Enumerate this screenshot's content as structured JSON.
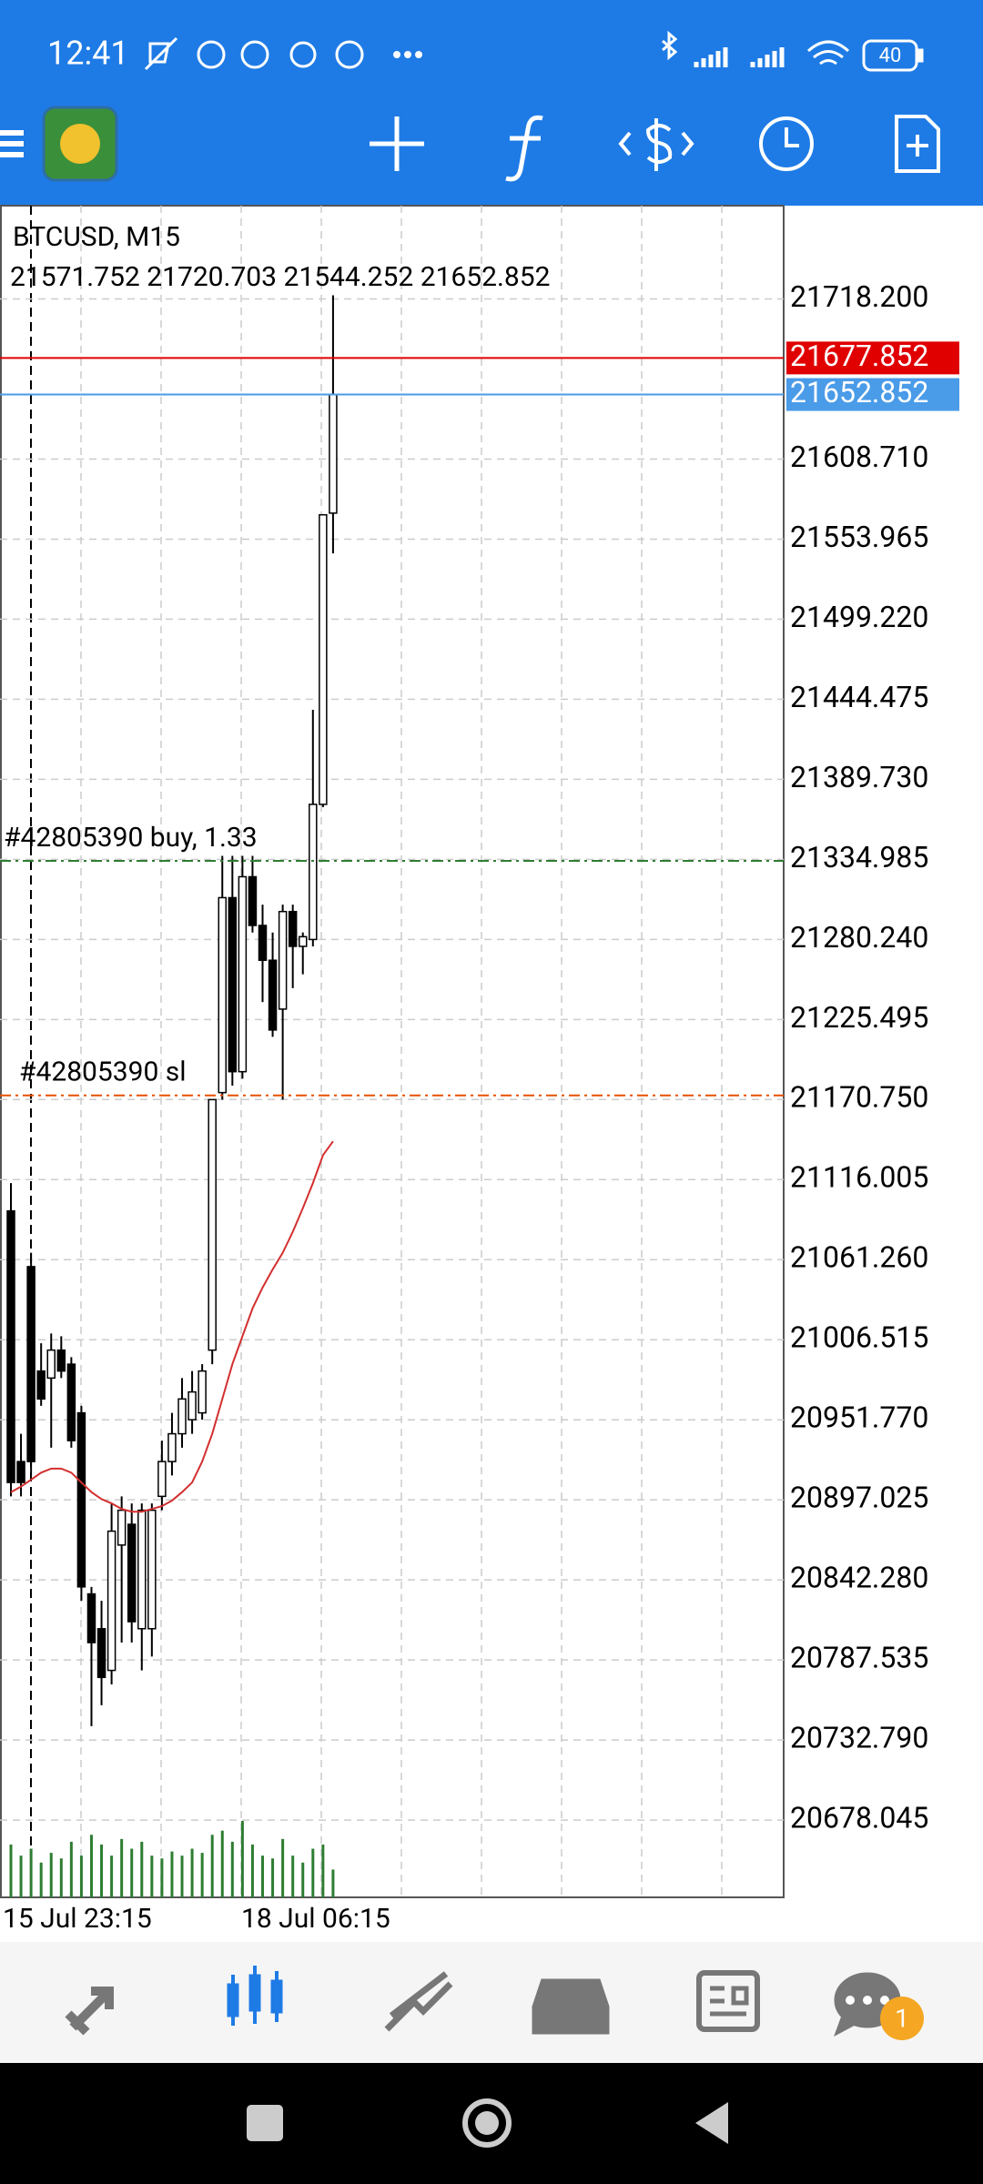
{
  "status_bar": {
    "time": "12:41",
    "battery": "40"
  },
  "chart": {
    "type": "candlestick",
    "symbol": "BTCUSD, M15",
    "ohlc_text": "21571.752 21720.703 21544.252 21652.852",
    "ylim": [
      20625.2,
      21782.0
    ],
    "yticks": [
      {
        "value": 21718.2,
        "label": "21718.200"
      },
      {
        "value": 21608.71,
        "label": "21608.710"
      },
      21553.965,
      {
        "value": 21499.22,
        "label": "21499.220"
      },
      21444.475,
      {
        "value": 21389.73,
        "label": "21389.730"
      },
      21334.985,
      {
        "value": 21280.24,
        "label": "21280.240"
      },
      21225.495,
      {
        "value": 21170.75,
        "label": "21170.750"
      },
      21116.005,
      {
        "value": 21061.26,
        "label": "21061.260"
      },
      21006.515,
      {
        "value": 20951.77,
        "label": "20951.770"
      },
      20897.025,
      {
        "value": 20842.28,
        "label": "20842.280"
      },
      20787.535,
      {
        "value": 20732.79,
        "label": "20732.790"
      },
      20678.045
    ],
    "xlabels": [
      "15 Jul 23:15",
      "18 Jul 06:15"
    ],
    "open": [
      21094.6,
      20923.2,
      21056.5,
      20985.1,
      20980.3,
      20999.4,
      20989.8,
      20956.5,
      20832.7,
      20808.9,
      20780.4,
      20866.1,
      20880.3,
      20808.9,
      20808.9,
      20899.4,
      20923.2,
      20942.2,
      20951.8,
      20956.5,
      20999.4,
      21175.5,
      21308.8,
      21189.8,
      21323.1,
      21289.8,
      21266.0,
      21232.6,
      21299.3,
      21275.5,
      21280.2,
      21372.6,
      21571.752
    ],
    "high": [
      21113.6,
      20942.2,
      21066.0,
      21004.1,
      21010.8,
      21008.9,
      20994.6,
      20961.3,
      20837.5,
      20828.0,
      20894.6,
      20899.4,
      20894.6,
      20894.6,
      20894.6,
      20937.5,
      20956.5,
      20980.3,
      20985.1,
      20989.8,
      21170.7,
      21337.4,
      21337.4,
      21337.4,
      21337.4,
      21304.0,
      21285.0,
      21304.0,
      21304.0,
      21285.0,
      21437.3,
      21570.6,
      21720.703
    ],
    "low": [
      20899.4,
      20899.4,
      20913.7,
      20961.3,
      20932.7,
      20980.3,
      20932.7,
      20828.0,
      20742.3,
      20756.6,
      20770.8,
      20799.4,
      20799.4,
      20780.4,
      20789.9,
      20889.9,
      20913.7,
      20932.7,
      20942.2,
      20951.8,
      20989.8,
      21170.7,
      21180.3,
      21185.0,
      21285.0,
      21237.4,
      21213.6,
      21170.7,
      21246.9,
      21256.4,
      21275.5,
      21370.7,
      21544.252
    ],
    "close": [
      20908.9,
      20908.9,
      20923.2,
      20966.0,
      20999.4,
      20985.1,
      20937.5,
      20837.5,
      20799.4,
      20775.6,
      20875.6,
      20889.9,
      20813.7,
      20889.9,
      20889.9,
      20923.2,
      20942.2,
      20966.0,
      20970.8,
      20985.1,
      21170.7,
      21308.8,
      21189.8,
      21323.1,
      21289.8,
      21266.0,
      21218.3,
      21299.3,
      21275.5,
      21282.1,
      21372.6,
      21570.6,
      21652.852
    ],
    "ma": [
      20902.3,
      20906.1,
      20910.8,
      20915.6,
      20918.4,
      20918.4,
      20915.6,
      20908.9,
      20902.3,
      20897.5,
      20894.6,
      20890.8,
      20888.9,
      20888.9,
      20890.8,
      20892.7,
      20896.5,
      20902.3,
      20908.9,
      20923.2,
      20942.2,
      20966.0,
      20989.8,
      21008.9,
      21027.9,
      21042.2,
      21054.6,
      21066.0,
      21080.3,
      21096.5,
      21113.6,
      21132.7,
      21142.2
    ],
    "volumes": [
      38,
      30,
      35,
      25,
      32,
      28,
      40,
      30,
      45,
      38,
      30,
      42,
      35,
      40,
      30,
      28,
      33,
      30,
      35,
      32,
      45,
      48,
      40,
      55,
      38,
      30,
      28,
      42,
      30,
      25,
      35,
      38,
      20
    ],
    "ma_color": "#d32f2f",
    "bull_color": "#ffffff",
    "bear_color": "#000000",
    "volume_color": "#2e7d32",
    "ask": {
      "value": 21677.852,
      "color": "#e00000"
    },
    "bid": {
      "value": 21652.852,
      "color": "#4a9be8"
    },
    "orders": [
      {
        "label": "#42805390 buy, 1.33",
        "price": 21334.0,
        "color": "#2e7d32"
      },
      {
        "label": "#42805390 sl",
        "price": 21173.6,
        "color": "#e65100"
      }
    ]
  },
  "nav": {
    "chat_badge": "1"
  }
}
